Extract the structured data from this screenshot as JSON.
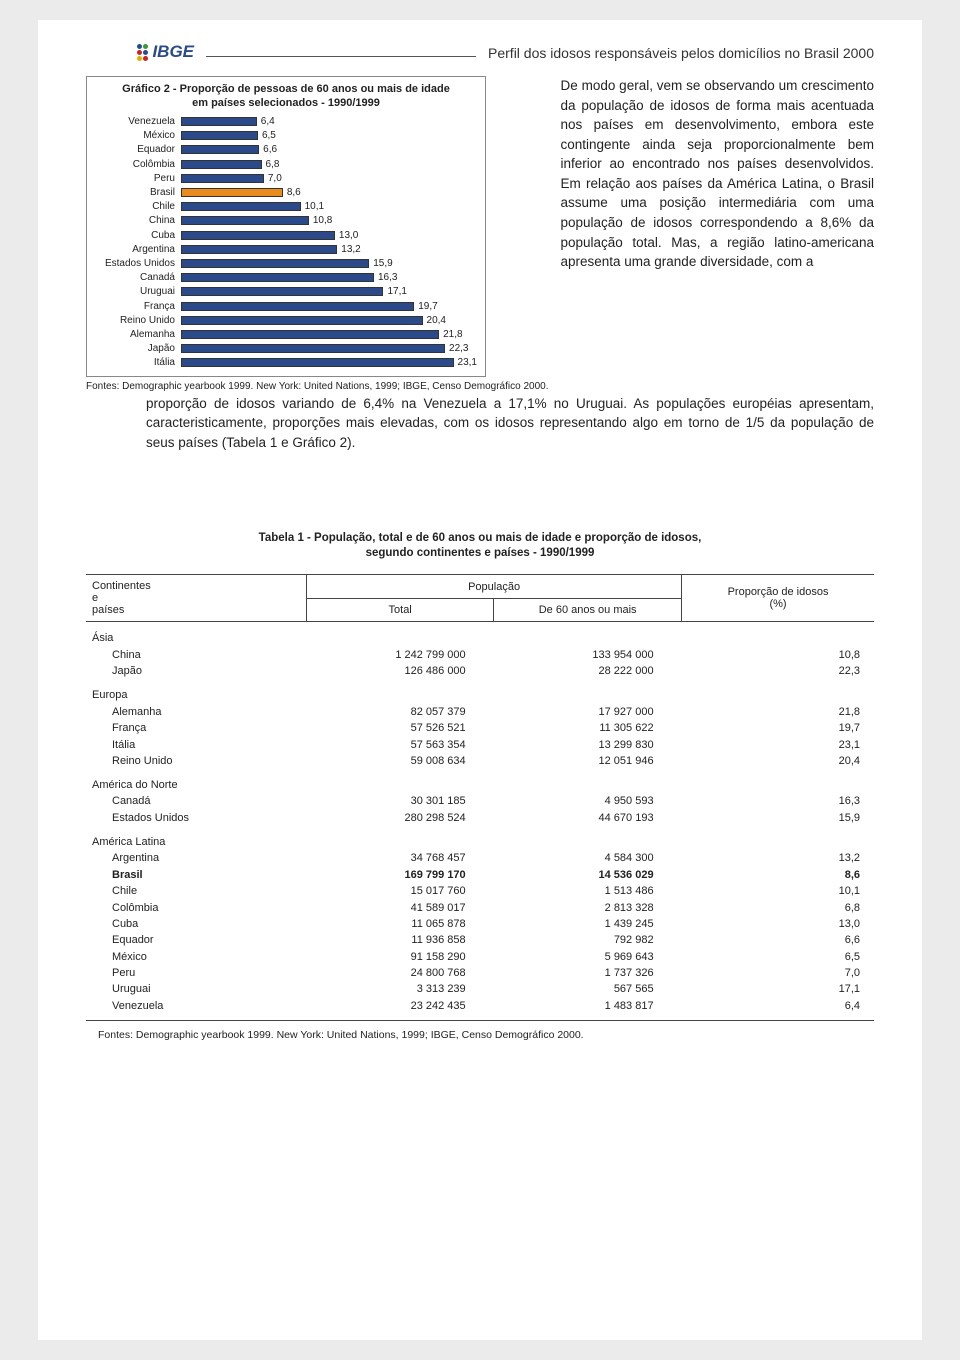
{
  "header": {
    "logo_text": "IBGE",
    "title": "Perfil dos idosos responsáveis pelos domicílios no Brasil 2000"
  },
  "chart": {
    "type": "bar",
    "title_l1": "Gráfico 2 - Proporção de pessoas de 60 anos ou mais de idade",
    "title_l2": "em países selecionados - 1990/1999",
    "xmax": 25,
    "default_bar_color": "#2a4a8a",
    "highlight_bar_color": "#e98b1e",
    "bar_border_color": "#333333",
    "background_color": "#ffffff",
    "categories": [
      {
        "label": "Venezuela",
        "value": 6.4,
        "display": "6,4"
      },
      {
        "label": "México",
        "value": 6.5,
        "display": "6,5"
      },
      {
        "label": "Equador",
        "value": 6.6,
        "display": "6,6"
      },
      {
        "label": "Colômbia",
        "value": 6.8,
        "display": "6,8"
      },
      {
        "label": "Peru",
        "value": 7.0,
        "display": "7,0"
      },
      {
        "label": "Brasil",
        "value": 8.6,
        "display": "8,6",
        "highlight": true
      },
      {
        "label": "Chile",
        "value": 10.1,
        "display": "10,1"
      },
      {
        "label": "China",
        "value": 10.8,
        "display": "10,8"
      },
      {
        "label": "Cuba",
        "value": 13.0,
        "display": "13,0"
      },
      {
        "label": "Argentina",
        "value": 13.2,
        "display": "13,2"
      },
      {
        "label": "Estados Unidos",
        "value": 15.9,
        "display": "15,9"
      },
      {
        "label": "Canadá",
        "value": 16.3,
        "display": "16,3"
      },
      {
        "label": "Uruguai",
        "value": 17.1,
        "display": "17,1"
      },
      {
        "label": "França",
        "value": 19.7,
        "display": "19,7"
      },
      {
        "label": "Reino Unido",
        "value": 20.4,
        "display": "20,4"
      },
      {
        "label": "Alemanha",
        "value": 21.8,
        "display": "21,8"
      },
      {
        "label": "Japão",
        "value": 22.3,
        "display": "22,3"
      },
      {
        "label": "Itália",
        "value": 23.1,
        "display": "23,1"
      }
    ],
    "source": "Fontes: Demographic yearbook 1999. New York: United Nations, 1999; IBGE, Censo Demográfico 2000."
  },
  "paragraph_side": "De modo geral, vem se observando um crescimento da população de idosos de forma mais acentuada nos países em desenvolvimento, embora este contingente ainda seja proporcionalmente bem inferior ao encontrado nos países desenvolvidos. Em relação aos países da América Latina, o Brasil assume uma posição intermediária com uma população de idosos correspondendo a 8,6% da população total. Mas, a região latino-americana apresenta uma grande  diversidade,  com  a",
  "paragraph_below": "proporção de idosos variando de 6,4% na Venezuela a 17,1% no Uruguai. As populações européias apresentam, caracteristicamente, proporções mais elevadas, com os idosos representando algo em torno de 1/5 da população de seus países (Tabela 1 e Gráfico 2).",
  "table": {
    "title_l1": "Tabela 1 - População, total e de 60 anos ou mais de idade e proporção de idosos,",
    "title_l2": "segundo continentes e países - 1990/1999",
    "col_left_l1": "Continentes",
    "col_left_l2": "e",
    "col_left_l3": "países",
    "col_pop_label": "População",
    "col_total": "Total",
    "col_60": "De 60 anos ou mais",
    "col_pct_l1": "Proporção de idosos",
    "col_pct_l2": "(%)",
    "groups": [
      {
        "name": "Ásia",
        "rows": [
          {
            "label": "China",
            "total": "1 242 799 000",
            "p60": "133 954 000",
            "pct": "10,8"
          },
          {
            "label": "Japão",
            "total": "126 486 000",
            "p60": "28 222 000",
            "pct": "22,3"
          }
        ]
      },
      {
        "name": "Europa",
        "rows": [
          {
            "label": "Alemanha",
            "total": "82 057 379",
            "p60": "17 927 000",
            "pct": "21,8"
          },
          {
            "label": "França",
            "total": "57 526 521",
            "p60": "11 305 622",
            "pct": "19,7"
          },
          {
            "label": "Itália",
            "total": "57 563 354",
            "p60": "13 299 830",
            "pct": "23,1"
          },
          {
            "label": "Reino Unido",
            "total": "59 008 634",
            "p60": "12 051 946",
            "pct": "20,4"
          }
        ]
      },
      {
        "name": "América do Norte",
        "rows": [
          {
            "label": "Canadá",
            "total": "30 301 185",
            "p60": "4 950 593",
            "pct": "16,3"
          },
          {
            "label": "Estados Unidos",
            "total": "280 298 524",
            "p60": "44 670 193",
            "pct": "15,9"
          }
        ]
      },
      {
        "name": "América Latina",
        "rows": [
          {
            "label": "Argentina",
            "total": "34 768 457",
            "p60": "4 584 300",
            "pct": "13,2"
          },
          {
            "label": "Brasil",
            "total": "169 799 170",
            "p60": "14 536 029",
            "pct": "8,6",
            "bold": true
          },
          {
            "label": "Chile",
            "total": "15 017 760",
            "p60": "1 513 486",
            "pct": "10,1"
          },
          {
            "label": "Colômbia",
            "total": "41 589 017",
            "p60": "2 813 328",
            "pct": "6,8"
          },
          {
            "label": "Cuba",
            "total": "11 065 878",
            "p60": "1 439 245",
            "pct": "13,0"
          },
          {
            "label": "Equador",
            "total": "11 936 858",
            "p60": "792 982",
            "pct": "6,6"
          },
          {
            "label": "México",
            "total": "91 158 290",
            "p60": "5 969 643",
            "pct": "6,5"
          },
          {
            "label": "Peru",
            "total": "24 800 768",
            "p60": "1 737 326",
            "pct": "7,0"
          },
          {
            "label": "Uruguai",
            "total": "3 313 239",
            "p60": "567 565",
            "pct": "17,1"
          },
          {
            "label": "Venezuela",
            "total": "23 242 435",
            "p60": "1 483 817",
            "pct": "6,4"
          }
        ]
      }
    ],
    "source": "Fontes: Demographic yearbook 1999. New York: United Nations, 1999; IBGE, Censo Demográfico 2000."
  }
}
